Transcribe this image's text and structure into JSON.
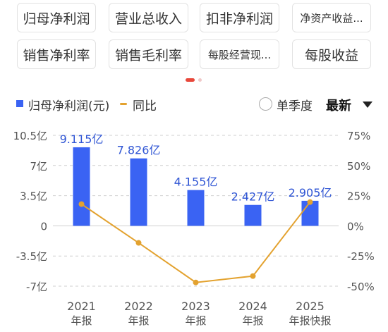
{
  "tabs": [
    {
      "label": "归母净利润",
      "active": true
    },
    {
      "label": "营业总收入",
      "active": false
    },
    {
      "label": "扣非净利润",
      "active": false
    },
    {
      "label": "净资产收益...",
      "active": false
    },
    {
      "label": "销售净利率",
      "active": false
    },
    {
      "label": "销售毛利率",
      "active": false
    },
    {
      "label": "每股经营现...",
      "active": false
    },
    {
      "label": "每股收益",
      "active": false
    }
  ],
  "legend": {
    "bar_label": "归母净利润(元)",
    "line_label": "同比",
    "radio_label": "单季度",
    "period_label": "最新"
  },
  "colors": {
    "bar": "#3a63f3",
    "line": "#e3a22f",
    "value_label": "#2f55d4",
    "tab_active_bg": "#f2f2f2",
    "pager_active": "#e8483b"
  },
  "chart_data": {
    "type": "bar",
    "categories": [
      "2021",
      "2022",
      "2023",
      "2024",
      "2025"
    ],
    "category_sublabels": [
      "年报",
      "年报",
      "年报",
      "年报",
      "年报快报"
    ],
    "series": [
      {
        "name": "归母净利润(元)",
        "type": "bar",
        "axis": "left",
        "values": [
          9.115,
          7.826,
          4.155,
          2.427,
          2.905
        ],
        "value_labels": [
          "9.115亿",
          "7.826亿",
          "4.155亿",
          "2.427亿",
          "2.905亿"
        ]
      },
      {
        "name": "同比",
        "type": "line",
        "axis": "right",
        "values": [
          18,
          -14.1,
          -46.9,
          -41.6,
          19.7
        ]
      }
    ],
    "y_left": {
      "min": -7,
      "max": 10.5,
      "ticks": [
        10.5,
        7,
        3.5,
        0,
        -3.5,
        -7
      ],
      "tick_labels": [
        "10.5亿",
        "7亿",
        "3.5亿",
        "0",
        "-3.5亿",
        "-7亿"
      ]
    },
    "y_right": {
      "min": -50,
      "max": 75,
      "ticks": [
        75,
        50,
        25,
        0,
        -25,
        -50
      ],
      "tick_labels": [
        "75%",
        "50%",
        "25%",
        "0%",
        "-25%",
        "-50%"
      ]
    },
    "grid": true,
    "legend_position": "top-left"
  }
}
